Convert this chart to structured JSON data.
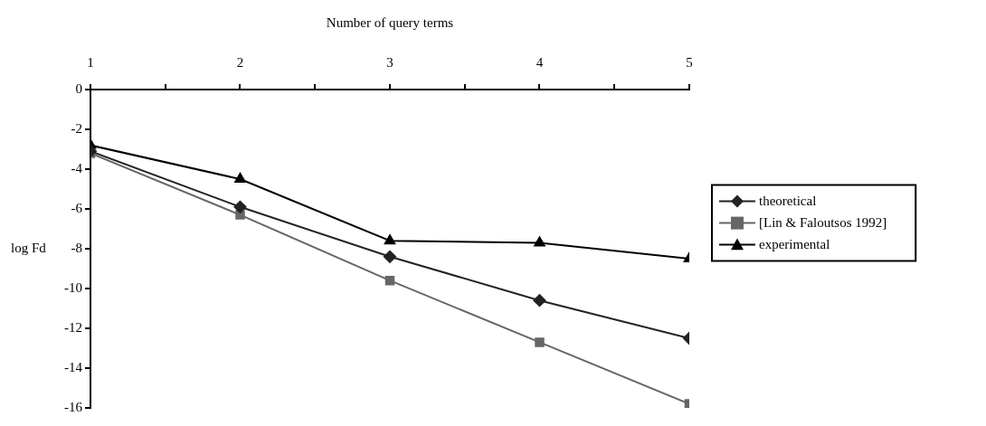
{
  "chart_data": {
    "type": "line",
    "xlabel": "Number of query terms",
    "ylabel": "log Fd",
    "x": [
      1,
      2,
      3,
      4,
      5
    ],
    "xlim": [
      1,
      5
    ],
    "xticks": [
      1,
      {
        "value": 1.5,
        "label": null
      },
      2,
      {
        "value": 2.5,
        "label": null
      },
      3,
      {
        "value": 3.5,
        "label": null
      },
      4,
      {
        "value": 4.5,
        "label": null
      },
      5
    ],
    "ylim": [
      -16,
      0
    ],
    "yticks": [
      0,
      -2,
      -4,
      -6,
      -8,
      -10,
      -12,
      -14,
      -16
    ],
    "series": [
      {
        "name": "theoretical",
        "color": "#222222",
        "marker": "diamond",
        "values": [
          -3.1,
          -5.9,
          -8.4,
          -10.6,
          -12.5
        ]
      },
      {
        "name": "[Lin & Faloutsos 1992]",
        "color": "#666666",
        "marker": "square",
        "values": [
          -3.2,
          -6.3,
          -9.6,
          -12.7,
          -15.8
        ]
      },
      {
        "name": "experimental",
        "color": "#000000",
        "marker": "triangle",
        "values": [
          -2.8,
          -4.5,
          -7.6,
          -7.7,
          -8.5
        ]
      }
    ],
    "grid": false,
    "legend": "right",
    "line_style": "solid"
  }
}
